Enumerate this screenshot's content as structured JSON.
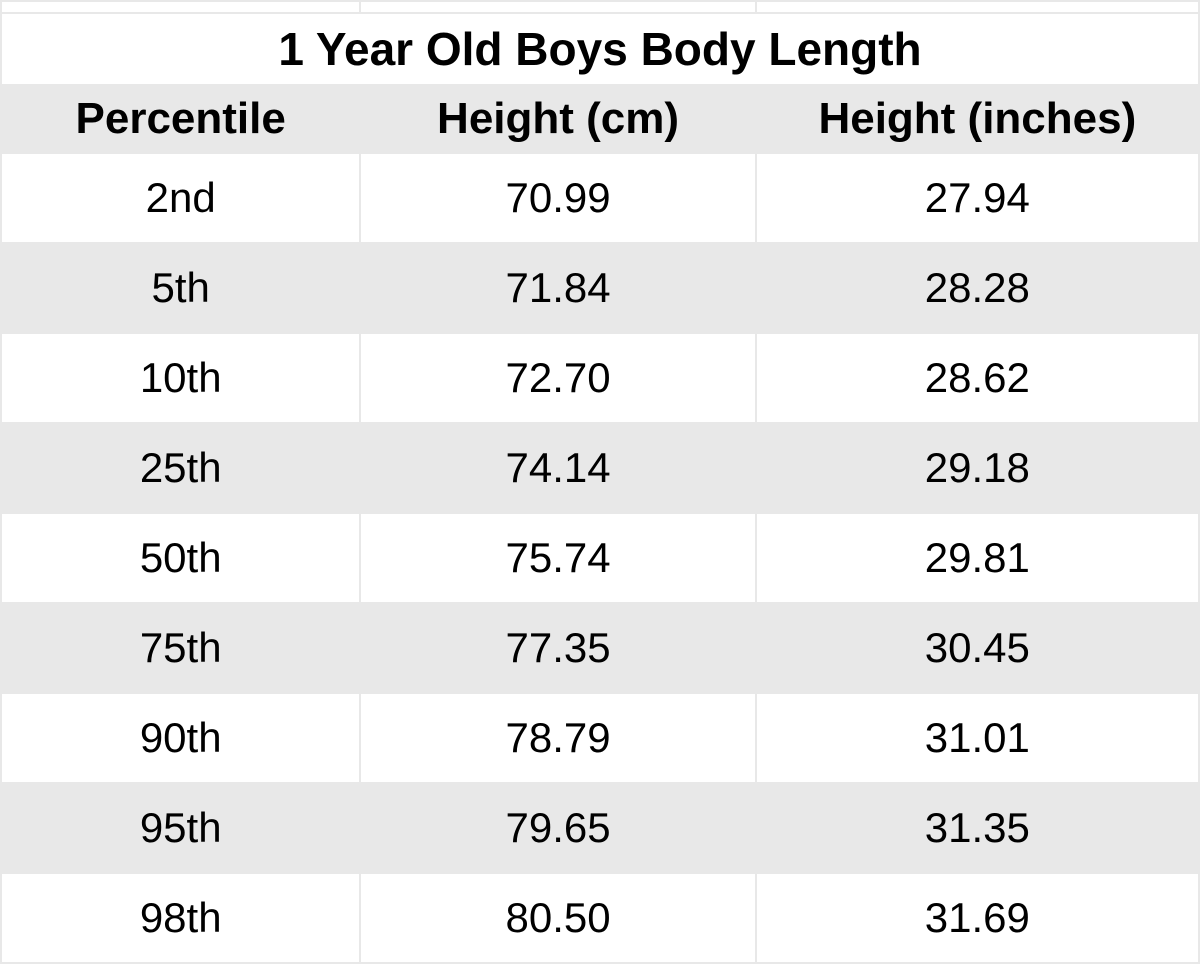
{
  "table": {
    "title": "1 Year Old Boys Body Length",
    "columns": [
      "Percentile",
      "Height (cm)",
      "Height (inches)"
    ],
    "rows": [
      [
        "2nd",
        "70.99",
        "27.94"
      ],
      [
        "5th",
        "71.84",
        "28.28"
      ],
      [
        "10th",
        "72.70",
        "28.62"
      ],
      [
        "25th",
        "74.14",
        "29.18"
      ],
      [
        "50th",
        "75.74",
        "29.81"
      ],
      [
        "75th",
        "77.35",
        "30.45"
      ],
      [
        "90th",
        "78.79",
        "31.01"
      ],
      [
        "95th",
        "79.65",
        "31.35"
      ],
      [
        "98th",
        "80.50",
        "31.69"
      ]
    ],
    "styling": {
      "title_fontsize": 46,
      "header_fontsize": 44,
      "cell_fontsize": 42,
      "title_fontweight": "bold",
      "header_fontweight": "bold",
      "background_color": "#ffffff",
      "header_background_color": "#e8e8e8",
      "row_odd_background_color": "#ffffff",
      "row_even_background_color": "#e8e8e8",
      "border_color": "#e8e8e8",
      "text_color": "#000000",
      "column_widths": [
        "30%",
        "33%",
        "37%"
      ],
      "text_align": "center"
    }
  }
}
